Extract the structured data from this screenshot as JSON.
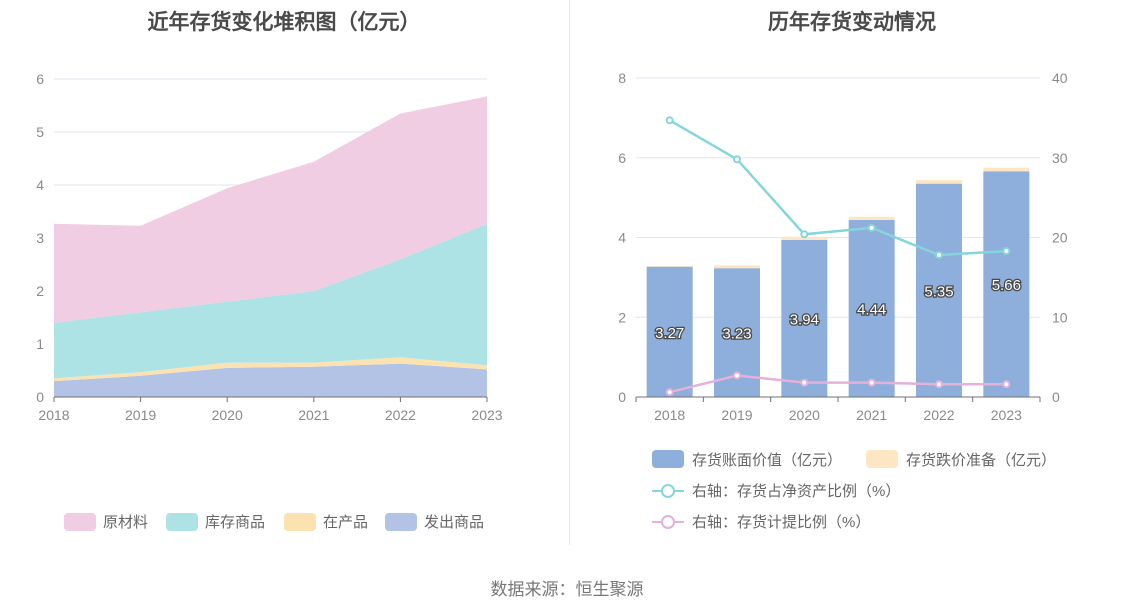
{
  "source": "数据来源：恒生聚源",
  "colors": {
    "raw_material": "#f0cde3",
    "stock_goods": "#ade3e5",
    "in_production": "#fde2b1",
    "shipped_goods": "#b2c3e6",
    "book_value": "#8eaedb",
    "impairment": "#fde6c4",
    "net_asset_ratio": "#86d5dc",
    "provision_ratio": "#e4b1d9"
  },
  "chart_data": [
    {
      "type": "area",
      "title": "近年存货变化堆积图（亿元）",
      "x": [
        "2018",
        "2019",
        "2020",
        "2021",
        "2022",
        "2023"
      ],
      "ylim": [
        0,
        6
      ],
      "yticks": [
        "0",
        "1",
        "2",
        "3",
        "4",
        "5",
        "6"
      ],
      "grid": true,
      "legend_position": "bottom",
      "stacked": true,
      "series": [
        {
          "name": "发出商品",
          "values": [
            0.3,
            0.4,
            0.55,
            0.57,
            0.63,
            0.52
          ]
        },
        {
          "name": "在产品",
          "values": [
            0.05,
            0.07,
            0.1,
            0.08,
            0.12,
            0.08
          ]
        },
        {
          "name": "库存商品",
          "values": [
            1.05,
            1.13,
            1.15,
            1.35,
            1.85,
            2.67
          ]
        },
        {
          "name": "原材料",
          "values": [
            1.87,
            1.63,
            2.14,
            2.44,
            2.75,
            2.4
          ]
        }
      ],
      "legend_order": [
        "原材料",
        "库存商品",
        "在产品",
        "发出商品"
      ]
    },
    {
      "type": "bar",
      "title": "历年存货变动情况",
      "categories": [
        "2018",
        "2019",
        "2020",
        "2021",
        "2022",
        "2023"
      ],
      "ylim": [
        0,
        8
      ],
      "yticks": [
        "0",
        "2",
        "4",
        "6",
        "8"
      ],
      "y2lim": [
        0,
        40
      ],
      "y2ticks": [
        "0",
        "10",
        "20",
        "30",
        "40"
      ],
      "grid": true,
      "legend_position": "bottom",
      "series": [
        {
          "name": "存货账面价值（亿元）",
          "type": "bar",
          "stack": true,
          "axis": "left",
          "values": [
            3.27,
            3.23,
            3.94,
            4.44,
            5.35,
            5.66
          ],
          "labels": [
            "3.27",
            "3.23",
            "3.94",
            "4.44",
            "5.35",
            "5.66"
          ]
        },
        {
          "name": "存货跌价准备（亿元）",
          "type": "bar",
          "stack": true,
          "axis": "left",
          "values": [
            0.01,
            0.07,
            0.08,
            0.08,
            0.09,
            0.09
          ]
        },
        {
          "name": "右轴：存货占净资产比例（%）",
          "type": "line",
          "axis": "right",
          "values": [
            34.7,
            29.8,
            20.4,
            21.2,
            17.8,
            18.3
          ]
        },
        {
          "name": "右轴：存货计提比例（%）",
          "type": "line",
          "axis": "right",
          "values": [
            0.6,
            2.7,
            1.8,
            1.8,
            1.6,
            1.6
          ]
        }
      ]
    }
  ]
}
